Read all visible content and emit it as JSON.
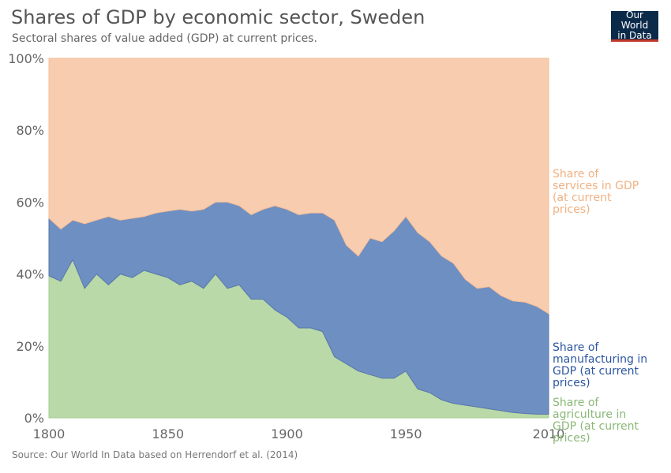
{
  "header": {
    "title": "Shares of GDP by economic sector, Sweden",
    "subtitle": "Sectoral shares of value added (GDP) at current prices."
  },
  "logo": {
    "line1": "Our World",
    "line2": "in Data"
  },
  "footer": {
    "source": "Source: Our World In Data based on Herrendorf et al. (2014)"
  },
  "colors": {
    "agriculture": "#b9d9a8",
    "manufacturing": "#6e8fc2",
    "services": "#f8ccae",
    "agriculture_label": "#8ab877",
    "manufacturing_label": "#2c56a0",
    "services_label": "#f0b183"
  },
  "chart_data": {
    "type": "area",
    "stacked": true,
    "x_ticks": [
      "1800",
      "1850",
      "1900",
      "1950",
      "2010"
    ],
    "y_ticks": [
      "0%",
      "20%",
      "40%",
      "60%",
      "80%",
      "100%"
    ],
    "xlim": [
      1800,
      2010
    ],
    "ylim": [
      0,
      100
    ],
    "grid": true,
    "years": [
      1800,
      1805,
      1810,
      1815,
      1820,
      1825,
      1830,
      1835,
      1840,
      1845,
      1850,
      1855,
      1860,
      1865,
      1870,
      1875,
      1880,
      1885,
      1890,
      1895,
      1900,
      1905,
      1910,
      1915,
      1920,
      1925,
      1930,
      1935,
      1940,
      1945,
      1950,
      1955,
      1960,
      1965,
      1970,
      1975,
      1980,
      1985,
      1990,
      1995,
      2000,
      2005,
      2010
    ],
    "series": [
      {
        "name": "Share of agriculture in GDP (at current prices)",
        "values": [
          39.5,
          38,
          44,
          36,
          40,
          37,
          40,
          39,
          41,
          40,
          39,
          37,
          38,
          36,
          40,
          36,
          37,
          33,
          33,
          30,
          28,
          25,
          25,
          24,
          17,
          15,
          13,
          12,
          11,
          11,
          13,
          8,
          7,
          5,
          4,
          3.5,
          3,
          2.5,
          2,
          1.5,
          1.2,
          1,
          1
        ]
      },
      {
        "name": "Share of manufacturing in GDP (at current prices)",
        "values": [
          16,
          14.5,
          11,
          18,
          15,
          19,
          15,
          16.5,
          15,
          17,
          18.5,
          21,
          19.5,
          22,
          20,
          24,
          22,
          23.5,
          25,
          29,
          30,
          31.5,
          32,
          33,
          38,
          33,
          32,
          38,
          38,
          41,
          43,
          43.5,
          42,
          40,
          39,
          35,
          33,
          34,
          32,
          31,
          31,
          30,
          28
        ]
      },
      {
        "name": "Share of services in GDP (at current prices)",
        "values": [
          44.5,
          47.5,
          45,
          46,
          45,
          44,
          45,
          44.5,
          44,
          43,
          42.5,
          42,
          42.5,
          42,
          40,
          40,
          41,
          43.5,
          42,
          41,
          42,
          43.5,
          43,
          43,
          45,
          52,
          55,
          50,
          51,
          48,
          44,
          48.5,
          51,
          55,
          57,
          61.5,
          64,
          63.5,
          66,
          67.5,
          67.8,
          69,
          71
        ]
      }
    ]
  }
}
